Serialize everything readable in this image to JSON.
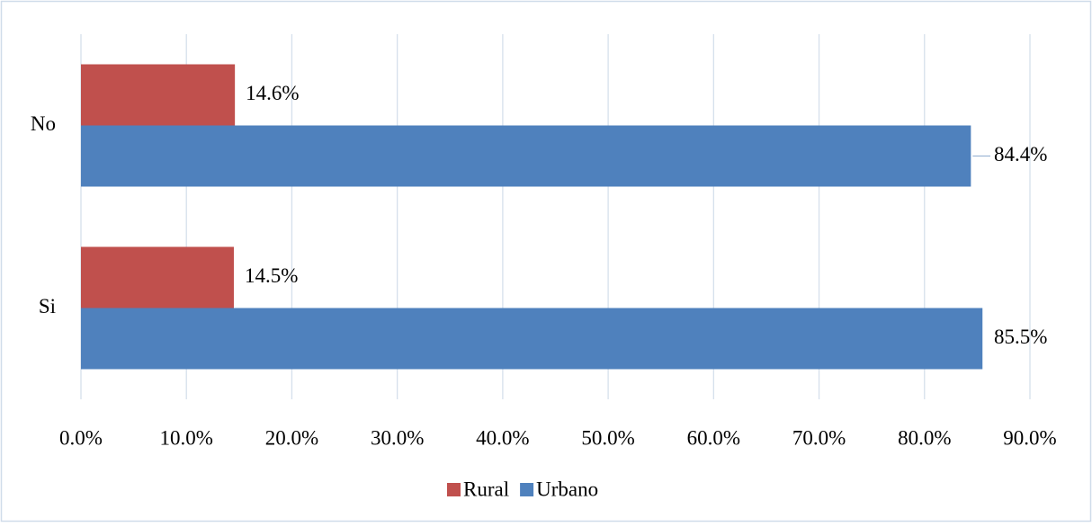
{
  "chart_data": {
    "type": "bar",
    "orientation": "horizontal",
    "categories": [
      "No",
      "Si"
    ],
    "series": [
      {
        "name": "Rural",
        "color": "#c0504d",
        "values": [
          14.6,
          14.5
        ],
        "value_labels": [
          "14.6%",
          "14.5%"
        ]
      },
      {
        "name": "Urbano",
        "color": "#4f81bd",
        "values": [
          84.4,
          85.5
        ],
        "value_labels": [
          "84.4%",
          "85.5%"
        ]
      }
    ],
    "xlim": [
      0,
      90
    ],
    "xticks": [
      {
        "value": 0,
        "label": "0.0%"
      },
      {
        "value": 10,
        "label": "10.0%"
      },
      {
        "value": 20,
        "label": "20.0%"
      },
      {
        "value": 30,
        "label": "30.0%"
      },
      {
        "value": 40,
        "label": "40.0%"
      },
      {
        "value": 50,
        "label": "50.0%"
      },
      {
        "value": 60,
        "label": "60.0%"
      },
      {
        "value": 70,
        "label": "70.0%"
      },
      {
        "value": 80,
        "label": "80.0%"
      },
      {
        "value": 90,
        "label": "90.0%"
      }
    ],
    "grid": true,
    "legend": "bottom"
  }
}
